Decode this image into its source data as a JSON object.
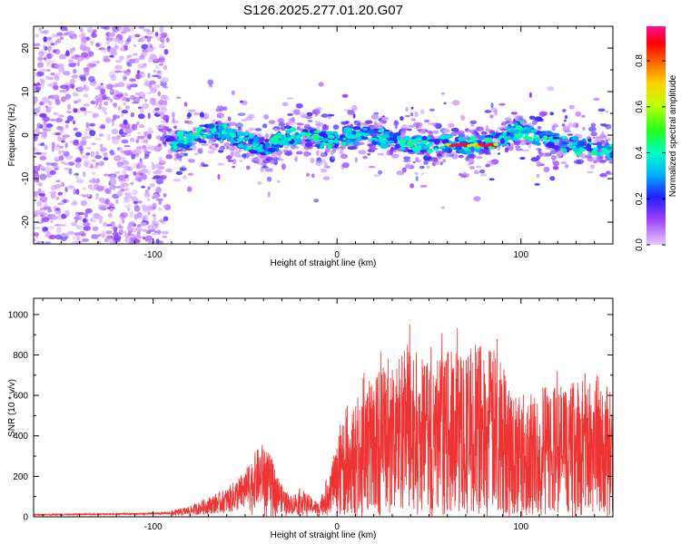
{
  "title": "S126.2025.277.01.20.G07",
  "chart_data": [
    {
      "type": "heatmap",
      "name": "spectrogram",
      "xlabel": "Height of straight line (km)",
      "ylabel": "Frequency (Hz)",
      "xlim": [
        -165,
        150
      ],
      "ylim": [
        -25,
        25
      ],
      "xticks": [
        "-100",
        "0",
        "100"
      ],
      "yticks": [
        "-20",
        "-10",
        "0",
        "10",
        "20"
      ],
      "colorbar": {
        "label": "Normalized spectral amplitude",
        "range": [
          0,
          0.95
        ],
        "ticks": [
          "0.0",
          "0.2",
          "0.4",
          "0.6",
          "0.8"
        ]
      },
      "ridge": [
        {
          "x": -90,
          "f": -1.5
        },
        {
          "x": -80,
          "f": -1.0
        },
        {
          "x": -70,
          "f": 0.5
        },
        {
          "x": -60,
          "f": 0.8
        },
        {
          "x": -50,
          "f": -1.5
        },
        {
          "x": -40,
          "f": -3.0
        },
        {
          "x": -30,
          "f": -1.0
        },
        {
          "x": -20,
          "f": 0.0
        },
        {
          "x": -10,
          "f": -1.0
        },
        {
          "x": 0,
          "f": -1.0
        },
        {
          "x": 10,
          "f": 0.0
        },
        {
          "x": 20,
          "f": -0.5
        },
        {
          "x": 30,
          "f": -1.0
        },
        {
          "x": 40,
          "f": -2.0
        },
        {
          "x": 50,
          "f": -2.0
        },
        {
          "x": 60,
          "f": -2.0
        },
        {
          "x": 70,
          "f": -2.5
        },
        {
          "x": 80,
          "f": -2.0
        },
        {
          "x": 90,
          "f": -0.5
        },
        {
          "x": 100,
          "f": 1.5
        },
        {
          "x": 110,
          "f": -1.0
        },
        {
          "x": 120,
          "f": -1.5
        },
        {
          "x": 130,
          "f": -2.5
        },
        {
          "x": 140,
          "f": -3.0
        },
        {
          "x": 148,
          "f": -4.0
        }
      ],
      "peak_segment": {
        "x_start": 60,
        "x_end": 87,
        "f": -2.3,
        "amplitude": 0.95
      },
      "noise_region": {
        "x_start": -165,
        "x_end": -92
      }
    },
    {
      "type": "line",
      "name": "snr",
      "xlabel": "Height of straight line (km)",
      "ylabel": "SNR (10 * v/v)",
      "xlim": [
        -165,
        150
      ],
      "ylim": [
        0,
        1080
      ],
      "xticks": [
        "-100",
        "0",
        "100"
      ],
      "yticks": [
        "0",
        "200",
        "400",
        "600",
        "800",
        "1000"
      ],
      "series_color": "#ee3333",
      "series": [
        {
          "name": "SNR",
          "x": [
            -165,
            -140,
            -110,
            -90,
            -80,
            -70,
            -60,
            -50,
            -45,
            -40,
            -35,
            -30,
            -25,
            -20,
            -15,
            -10,
            -5,
            0,
            5,
            10,
            15,
            20,
            25,
            30,
            35,
            40,
            45,
            50,
            55,
            60,
            65,
            70,
            75,
            80,
            85,
            90,
            95,
            100,
            105,
            110,
            115,
            120,
            125,
            130,
            135,
            140,
            145,
            150
          ],
          "y": [
            10,
            12,
            14,
            18,
            30,
            55,
            80,
            130,
            180,
            210,
            160,
            90,
            60,
            80,
            60,
            40,
            120,
            200,
            250,
            280,
            330,
            360,
            380,
            390,
            420,
            430,
            400,
            380,
            400,
            410,
            420,
            430,
            440,
            430,
            420,
            390,
            330,
            300,
            310,
            320,
            330,
            340,
            330,
            340,
            360,
            380,
            320,
            260
          ]
        }
      ]
    }
  ]
}
